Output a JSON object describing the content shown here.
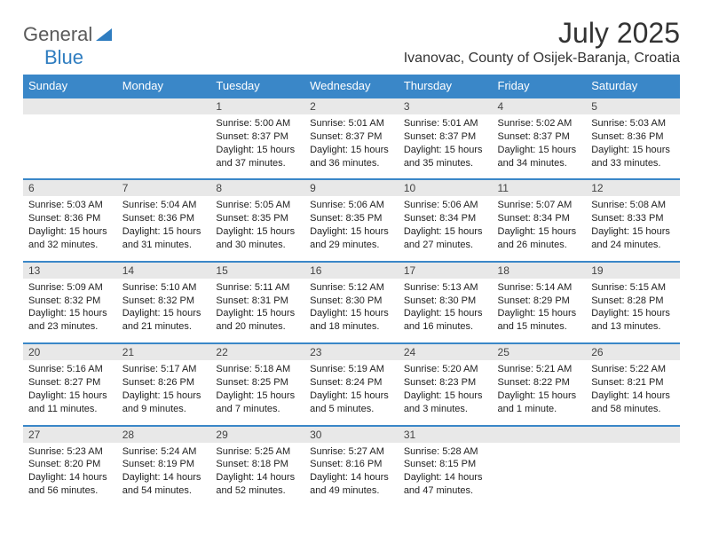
{
  "brand": {
    "part1": "General",
    "part2": "Blue"
  },
  "title": "July 2025",
  "location": "Ivanovac, County of Osijek-Baranja, Croatia",
  "colors": {
    "header_bg": "#3a87c8",
    "header_text": "#ffffff",
    "daynum_bg": "#e8e8e8",
    "border": "#3a87c8",
    "logo_gray": "#5a5a5a",
    "logo_blue": "#2f7dc0"
  },
  "dow": [
    "Sunday",
    "Monday",
    "Tuesday",
    "Wednesday",
    "Thursday",
    "Friday",
    "Saturday"
  ],
  "weeks": [
    [
      null,
      null,
      {
        "n": "1",
        "sunrise": "Sunrise: 5:00 AM",
        "sunset": "Sunset: 8:37 PM",
        "day1": "Daylight: 15 hours",
        "day2": "and 37 minutes."
      },
      {
        "n": "2",
        "sunrise": "Sunrise: 5:01 AM",
        "sunset": "Sunset: 8:37 PM",
        "day1": "Daylight: 15 hours",
        "day2": "and 36 minutes."
      },
      {
        "n": "3",
        "sunrise": "Sunrise: 5:01 AM",
        "sunset": "Sunset: 8:37 PM",
        "day1": "Daylight: 15 hours",
        "day2": "and 35 minutes."
      },
      {
        "n": "4",
        "sunrise": "Sunrise: 5:02 AM",
        "sunset": "Sunset: 8:37 PM",
        "day1": "Daylight: 15 hours",
        "day2": "and 34 minutes."
      },
      {
        "n": "5",
        "sunrise": "Sunrise: 5:03 AM",
        "sunset": "Sunset: 8:36 PM",
        "day1": "Daylight: 15 hours",
        "day2": "and 33 minutes."
      }
    ],
    [
      {
        "n": "6",
        "sunrise": "Sunrise: 5:03 AM",
        "sunset": "Sunset: 8:36 PM",
        "day1": "Daylight: 15 hours",
        "day2": "and 32 minutes."
      },
      {
        "n": "7",
        "sunrise": "Sunrise: 5:04 AM",
        "sunset": "Sunset: 8:36 PM",
        "day1": "Daylight: 15 hours",
        "day2": "and 31 minutes."
      },
      {
        "n": "8",
        "sunrise": "Sunrise: 5:05 AM",
        "sunset": "Sunset: 8:35 PM",
        "day1": "Daylight: 15 hours",
        "day2": "and 30 minutes."
      },
      {
        "n": "9",
        "sunrise": "Sunrise: 5:06 AM",
        "sunset": "Sunset: 8:35 PM",
        "day1": "Daylight: 15 hours",
        "day2": "and 29 minutes."
      },
      {
        "n": "10",
        "sunrise": "Sunrise: 5:06 AM",
        "sunset": "Sunset: 8:34 PM",
        "day1": "Daylight: 15 hours",
        "day2": "and 27 minutes."
      },
      {
        "n": "11",
        "sunrise": "Sunrise: 5:07 AM",
        "sunset": "Sunset: 8:34 PM",
        "day1": "Daylight: 15 hours",
        "day2": "and 26 minutes."
      },
      {
        "n": "12",
        "sunrise": "Sunrise: 5:08 AM",
        "sunset": "Sunset: 8:33 PM",
        "day1": "Daylight: 15 hours",
        "day2": "and 24 minutes."
      }
    ],
    [
      {
        "n": "13",
        "sunrise": "Sunrise: 5:09 AM",
        "sunset": "Sunset: 8:32 PM",
        "day1": "Daylight: 15 hours",
        "day2": "and 23 minutes."
      },
      {
        "n": "14",
        "sunrise": "Sunrise: 5:10 AM",
        "sunset": "Sunset: 8:32 PM",
        "day1": "Daylight: 15 hours",
        "day2": "and 21 minutes."
      },
      {
        "n": "15",
        "sunrise": "Sunrise: 5:11 AM",
        "sunset": "Sunset: 8:31 PM",
        "day1": "Daylight: 15 hours",
        "day2": "and 20 minutes."
      },
      {
        "n": "16",
        "sunrise": "Sunrise: 5:12 AM",
        "sunset": "Sunset: 8:30 PM",
        "day1": "Daylight: 15 hours",
        "day2": "and 18 minutes."
      },
      {
        "n": "17",
        "sunrise": "Sunrise: 5:13 AM",
        "sunset": "Sunset: 8:30 PM",
        "day1": "Daylight: 15 hours",
        "day2": "and 16 minutes."
      },
      {
        "n": "18",
        "sunrise": "Sunrise: 5:14 AM",
        "sunset": "Sunset: 8:29 PM",
        "day1": "Daylight: 15 hours",
        "day2": "and 15 minutes."
      },
      {
        "n": "19",
        "sunrise": "Sunrise: 5:15 AM",
        "sunset": "Sunset: 8:28 PM",
        "day1": "Daylight: 15 hours",
        "day2": "and 13 minutes."
      }
    ],
    [
      {
        "n": "20",
        "sunrise": "Sunrise: 5:16 AM",
        "sunset": "Sunset: 8:27 PM",
        "day1": "Daylight: 15 hours",
        "day2": "and 11 minutes."
      },
      {
        "n": "21",
        "sunrise": "Sunrise: 5:17 AM",
        "sunset": "Sunset: 8:26 PM",
        "day1": "Daylight: 15 hours",
        "day2": "and 9 minutes."
      },
      {
        "n": "22",
        "sunrise": "Sunrise: 5:18 AM",
        "sunset": "Sunset: 8:25 PM",
        "day1": "Daylight: 15 hours",
        "day2": "and 7 minutes."
      },
      {
        "n": "23",
        "sunrise": "Sunrise: 5:19 AM",
        "sunset": "Sunset: 8:24 PM",
        "day1": "Daylight: 15 hours",
        "day2": "and 5 minutes."
      },
      {
        "n": "24",
        "sunrise": "Sunrise: 5:20 AM",
        "sunset": "Sunset: 8:23 PM",
        "day1": "Daylight: 15 hours",
        "day2": "and 3 minutes."
      },
      {
        "n": "25",
        "sunrise": "Sunrise: 5:21 AM",
        "sunset": "Sunset: 8:22 PM",
        "day1": "Daylight: 15 hours",
        "day2": "and 1 minute."
      },
      {
        "n": "26",
        "sunrise": "Sunrise: 5:22 AM",
        "sunset": "Sunset: 8:21 PM",
        "day1": "Daylight: 14 hours",
        "day2": "and 58 minutes."
      }
    ],
    [
      {
        "n": "27",
        "sunrise": "Sunrise: 5:23 AM",
        "sunset": "Sunset: 8:20 PM",
        "day1": "Daylight: 14 hours",
        "day2": "and 56 minutes."
      },
      {
        "n": "28",
        "sunrise": "Sunrise: 5:24 AM",
        "sunset": "Sunset: 8:19 PM",
        "day1": "Daylight: 14 hours",
        "day2": "and 54 minutes."
      },
      {
        "n": "29",
        "sunrise": "Sunrise: 5:25 AM",
        "sunset": "Sunset: 8:18 PM",
        "day1": "Daylight: 14 hours",
        "day2": "and 52 minutes."
      },
      {
        "n": "30",
        "sunrise": "Sunrise: 5:27 AM",
        "sunset": "Sunset: 8:16 PM",
        "day1": "Daylight: 14 hours",
        "day2": "and 49 minutes."
      },
      {
        "n": "31",
        "sunrise": "Sunrise: 5:28 AM",
        "sunset": "Sunset: 8:15 PM",
        "day1": "Daylight: 14 hours",
        "day2": "and 47 minutes."
      },
      null,
      null
    ]
  ]
}
